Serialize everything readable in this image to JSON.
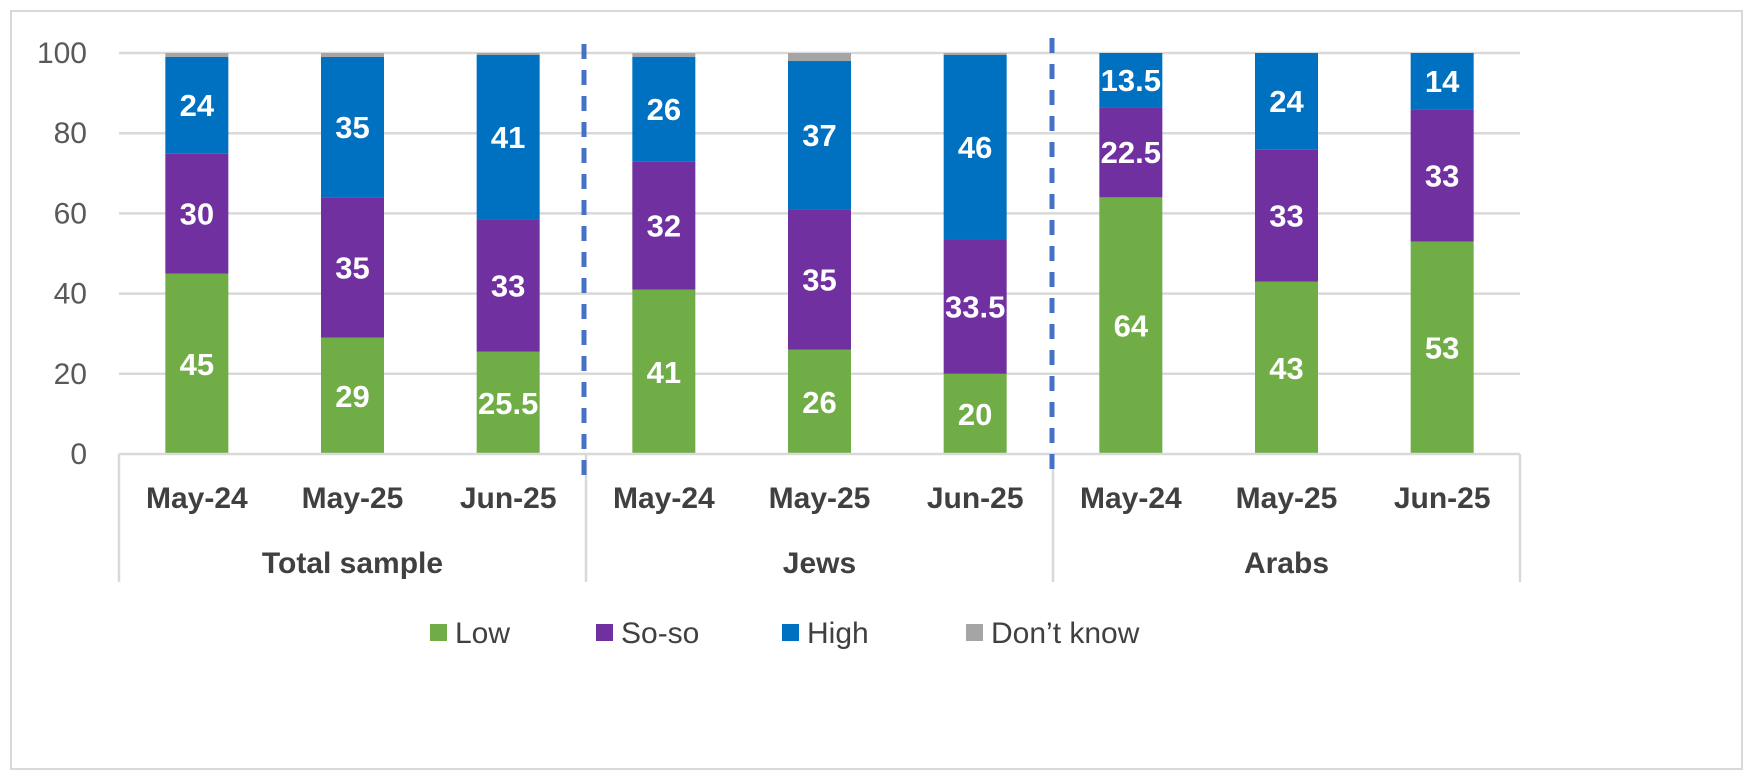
{
  "chart_data": {
    "type": "bar",
    "stacked": true,
    "ylim": [
      0,
      100
    ],
    "yticks": [
      0,
      20,
      40,
      60,
      80,
      100
    ],
    "grid": true,
    "legend_position": "bottom",
    "groups": [
      {
        "label": "Total sample",
        "categories": [
          "May-24",
          "May-25",
          "Jun-25"
        ]
      },
      {
        "label": "Jews",
        "categories": [
          "May-24",
          "May-25",
          "Jun-25"
        ]
      },
      {
        "label": "Arabs",
        "categories": [
          "May-24",
          "May-25",
          "Jun-25"
        ]
      }
    ],
    "categories": [
      "May-24",
      "May-25",
      "Jun-25",
      "May-24",
      "May-25",
      "Jun-25",
      "May-24",
      "May-25",
      "Jun-25"
    ],
    "series": [
      {
        "name": "Low",
        "color": "#70ad47",
        "values": [
          45,
          29,
          25.5,
          41,
          26,
          20,
          64,
          43,
          53
        ],
        "labels": [
          "45",
          "29",
          "25.5",
          "41",
          "26",
          "20",
          "64",
          "43",
          "53"
        ]
      },
      {
        "name": "So-so",
        "color": "#7030a0",
        "values": [
          30,
          35,
          33,
          32,
          35,
          33.5,
          22.5,
          33,
          33
        ],
        "labels": [
          "30",
          "35",
          "33",
          "32",
          "35",
          "33.5",
          "22.5",
          "33",
          "33"
        ]
      },
      {
        "name": "High",
        "color": "#0070c0",
        "values": [
          24,
          35,
          41,
          26,
          37,
          46,
          13.5,
          24,
          14
        ],
        "labels": [
          "24",
          "35",
          "41",
          "26",
          "37",
          "46",
          "13.5",
          "24",
          "14"
        ]
      },
      {
        "name": "Don’t know",
        "color": "#a5a5a5",
        "values": [
          1,
          1,
          0.5,
          1,
          2,
          0.5,
          0,
          0,
          0
        ],
        "labels": [
          "",
          "",
          "",
          "",
          "",
          "",
          "",
          "",
          ""
        ]
      }
    ],
    "separator_color": "#4472c4"
  }
}
